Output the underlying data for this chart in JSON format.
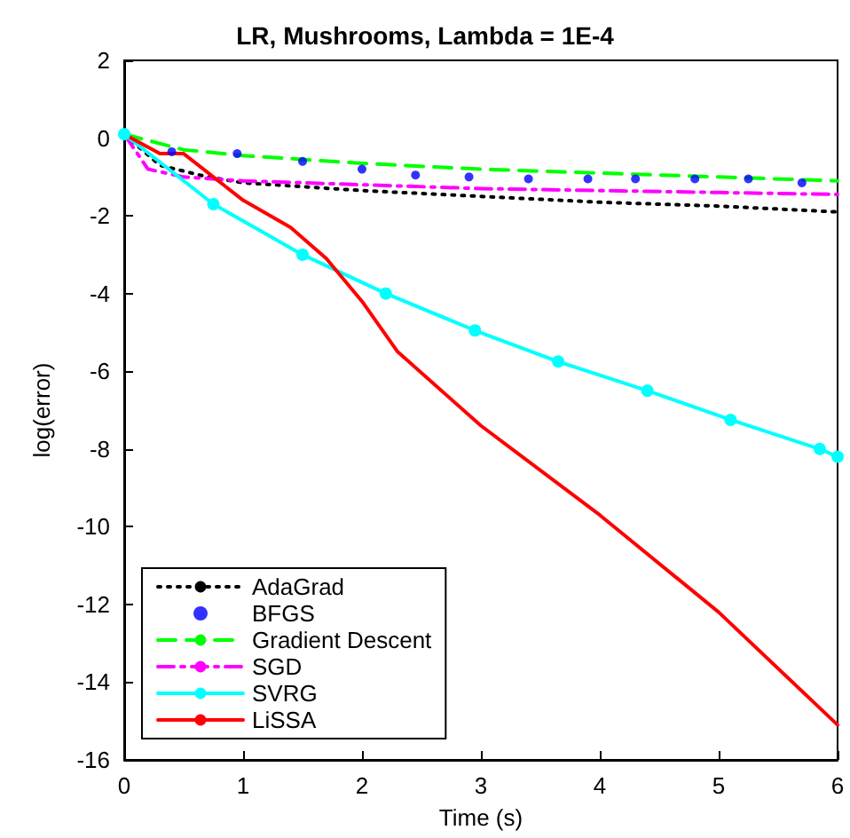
{
  "chart_data": {
    "type": "line",
    "title": "LR, Mushrooms, Lambda = 1E-4",
    "xlabel": "Time (s)",
    "ylabel": "log(error)",
    "xlim": [
      0,
      6
    ],
    "xticks": [
      0,
      1,
      2,
      3,
      4,
      5,
      6
    ],
    "ylim": [
      -16,
      2
    ],
    "yticks": [
      -16,
      -14,
      -12,
      -10,
      -8,
      -6,
      -4,
      -2,
      0,
      2
    ],
    "grid": false,
    "legend": "bottom left",
    "series": [
      {
        "name": "AdaGrad",
        "color": "#000000",
        "line_style": "dotted",
        "marker": "none",
        "x": [
          0,
          0.3,
          0.7,
          1,
          2,
          3,
          4,
          5,
          6
        ],
        "values": [
          0.1,
          -0.7,
          -1.0,
          -1.15,
          -1.35,
          -1.5,
          -1.65,
          -1.75,
          -1.9
        ]
      },
      {
        "name": "BFGS",
        "type": "scatter",
        "color": "#0000ff",
        "marker": "circle",
        "x": [
          0.4,
          0.95,
          1.5,
          2.0,
          2.45,
          2.9,
          3.4,
          3.9,
          4.3,
          4.8,
          5.25,
          5.7
        ],
        "values": [
          -0.35,
          -0.4,
          -0.6,
          -0.8,
          -0.95,
          -1.0,
          -1.05,
          -1.05,
          -1.05,
          -1.05,
          -1.05,
          -1.15
        ]
      },
      {
        "name": "Gradient Descent",
        "color": "#00ff00",
        "line_style": "dashed",
        "marker": "none",
        "x": [
          0,
          0.5,
          1,
          2,
          3,
          4,
          5,
          6
        ],
        "values": [
          0.1,
          -0.3,
          -0.45,
          -0.65,
          -0.8,
          -0.9,
          -1.0,
          -1.1
        ]
      },
      {
        "name": "SGD",
        "color": "#ff00ff",
        "line_style": "dashdot",
        "marker": "none",
        "x": [
          0,
          0.2,
          0.5,
          1,
          2,
          3,
          4,
          5,
          6
        ],
        "values": [
          0.1,
          -0.8,
          -1.0,
          -1.1,
          -1.2,
          -1.3,
          -1.35,
          -1.4,
          -1.45
        ]
      },
      {
        "name": "SVRG",
        "color": "#00ffff",
        "line_style": "solid",
        "marker": "circle",
        "x": [
          0,
          0.75,
          1.5,
          2.2,
          2.95,
          3.65,
          4.4,
          5.1,
          5.85,
          6
        ],
        "values": [
          0.1,
          -1.7,
          -3.0,
          -4.0,
          -4.95,
          -5.75,
          -6.5,
          -7.25,
          -8.0,
          -8.2
        ]
      },
      {
        "name": "LiSSA",
        "color": "#ff0000",
        "line_style": "solid",
        "marker": "none",
        "x": [
          0,
          0.3,
          0.5,
          1,
          1.4,
          1.7,
          2,
          2.3,
          3,
          4,
          5,
          6
        ],
        "values": [
          0.1,
          -0.4,
          -0.4,
          -1.6,
          -2.3,
          -3.1,
          -4.2,
          -5.5,
          -7.4,
          -9.7,
          -12.2,
          -15.1
        ]
      }
    ]
  }
}
